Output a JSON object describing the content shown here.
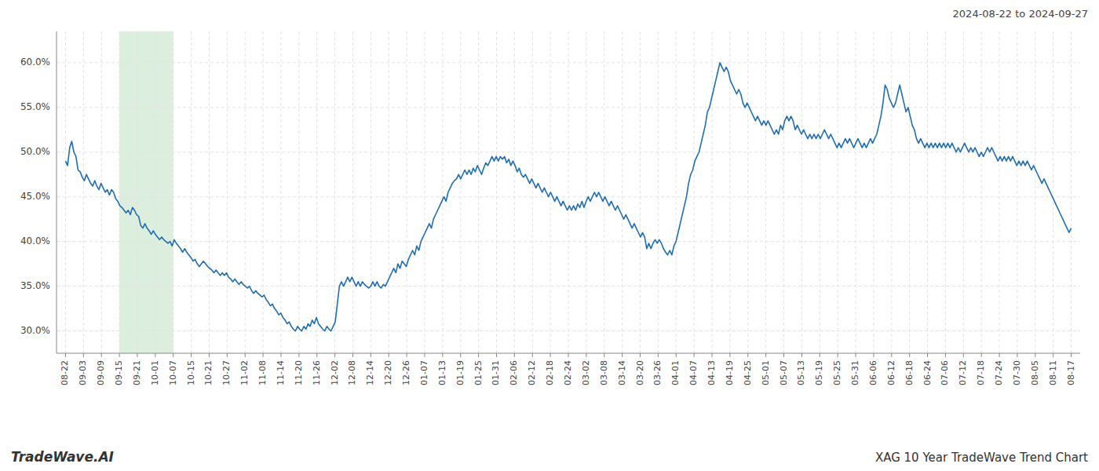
{
  "chart_data": {
    "type": "line",
    "title": "XAG 10 Year TradeWave Trend Chart",
    "subtitle": "2024-08-22 to 2024-09-27",
    "annotations": [
      "TradeWave.AI"
    ],
    "color": "#1f6eb4",
    "grid": true,
    "band": {
      "x": [
        3,
        6
      ],
      "color": "#dceedd"
    },
    "xlim": [
      -0.5,
      56.5
    ],
    "xticks": [
      {
        "value": 0,
        "label": "08-22"
      },
      {
        "value": 1,
        "label": "09-03"
      },
      {
        "value": 2,
        "label": "09-09"
      },
      {
        "value": 3,
        "label": "09-15"
      },
      {
        "value": 4,
        "label": "09-21"
      },
      {
        "value": 5,
        "label": "10-01"
      },
      {
        "value": 6,
        "label": "10-07"
      },
      {
        "value": 7,
        "label": "10-15"
      },
      {
        "value": 8,
        "label": "10-21"
      },
      {
        "value": 9,
        "label": "10-27"
      },
      {
        "value": 10,
        "label": "11-02"
      },
      {
        "value": 11,
        "label": "11-08"
      },
      {
        "value": 12,
        "label": "11-14"
      },
      {
        "value": 13,
        "label": "11-20"
      },
      {
        "value": 14,
        "label": "11-26"
      },
      {
        "value": 15,
        "label": "12-02"
      },
      {
        "value": 16,
        "label": "12-08"
      },
      {
        "value": 17,
        "label": "12-14"
      },
      {
        "value": 18,
        "label": "12-20"
      },
      {
        "value": 19,
        "label": "12-26"
      },
      {
        "value": 20,
        "label": "01-07"
      },
      {
        "value": 21,
        "label": "01-13"
      },
      {
        "value": 22,
        "label": "01-19"
      },
      {
        "value": 23,
        "label": "01-25"
      },
      {
        "value": 24,
        "label": "01-31"
      },
      {
        "value": 25,
        "label": "02-06"
      },
      {
        "value": 26,
        "label": "02-12"
      },
      {
        "value": 27,
        "label": "02-18"
      },
      {
        "value": 28,
        "label": "02-24"
      },
      {
        "value": 29,
        "label": "03-02"
      },
      {
        "value": 30,
        "label": "03-08"
      },
      {
        "value": 31,
        "label": "03-14"
      },
      {
        "value": 32,
        "label": "03-20"
      },
      {
        "value": 33,
        "label": "03-26"
      },
      {
        "value": 34,
        "label": "04-01"
      },
      {
        "value": 35,
        "label": "04-07"
      },
      {
        "value": 36,
        "label": "04-13"
      },
      {
        "value": 37,
        "label": "04-19"
      },
      {
        "value": 38,
        "label": "04-25"
      },
      {
        "value": 39,
        "label": "05-01"
      },
      {
        "value": 40,
        "label": "05-07"
      },
      {
        "value": 41,
        "label": "05-13"
      },
      {
        "value": 42,
        "label": "05-19"
      },
      {
        "value": 43,
        "label": "05-25"
      },
      {
        "value": 44,
        "label": "05-31"
      },
      {
        "value": 45,
        "label": "06-06"
      },
      {
        "value": 46,
        "label": "06-12"
      },
      {
        "value": 47,
        "label": "06-18"
      },
      {
        "value": 48,
        "label": "06-24"
      },
      {
        "value": 49,
        "label": "07-06"
      },
      {
        "value": 50,
        "label": "07-12"
      },
      {
        "value": 51,
        "label": "07-18"
      },
      {
        "value": 52,
        "label": "07-24"
      },
      {
        "value": 53,
        "label": "07-30"
      },
      {
        "value": 54,
        "label": "08-05"
      },
      {
        "value": 55,
        "label": "08-11"
      },
      {
        "value": 56,
        "label": "08-17"
      }
    ],
    "ylim": [
      27.5,
      63.5
    ],
    "yticks": [
      {
        "value": 30.0,
        "label": "30.0%"
      },
      {
        "value": 35.0,
        "label": "35.0%"
      },
      {
        "value": 40.0,
        "label": "40.0%"
      },
      {
        "value": 45.0,
        "label": "45.0%"
      },
      {
        "value": 50.0,
        "label": "50.0%"
      },
      {
        "value": 55.0,
        "label": "55.0%"
      },
      {
        "value": 60.0,
        "label": "60.0%"
      }
    ],
    "values": [
      49.0,
      48.5,
      50.5,
      51.2,
      50.0,
      49.5,
      48.0,
      47.8,
      47.2,
      46.8,
      47.5,
      47.0,
      46.5,
      46.2,
      46.8,
      46.2,
      45.8,
      46.5,
      46.0,
      45.5,
      45.8,
      45.2,
      45.8,
      45.5,
      44.8,
      44.5,
      44.0,
      43.8,
      43.5,
      43.2,
      43.5,
      43.0,
      43.8,
      43.5,
      43.0,
      42.8,
      41.8,
      41.5,
      42.0,
      41.5,
      41.2,
      40.8,
      41.2,
      40.8,
      40.5,
      40.2,
      40.5,
      40.2,
      40.0,
      39.8,
      40.0,
      39.5,
      40.2,
      39.8,
      39.5,
      39.2,
      38.8,
      39.2,
      38.8,
      38.5,
      38.2,
      37.8,
      38.0,
      37.5,
      37.2,
      37.5,
      37.8,
      37.5,
      37.2,
      37.0,
      36.8,
      36.5,
      36.8,
      36.5,
      36.2,
      36.5,
      36.2,
      36.5,
      36.0,
      35.8,
      35.5,
      35.8,
      35.5,
      35.2,
      35.5,
      35.2,
      35.0,
      34.8,
      35.0,
      34.5,
      34.2,
      34.5,
      34.2,
      34.0,
      33.8,
      34.0,
      33.5,
      33.2,
      32.8,
      33.0,
      32.5,
      32.2,
      31.8,
      32.0,
      31.5,
      31.2,
      30.8,
      31.0,
      30.5,
      30.2,
      30.0,
      30.5,
      30.2,
      30.0,
      30.5,
      30.2,
      30.8,
      30.5,
      31.2,
      30.8,
      31.5,
      30.8,
      30.5,
      30.2,
      30.0,
      30.5,
      30.2,
      30.0,
      30.5,
      31.0,
      33.0,
      35.0,
      35.5,
      35.0,
      35.5,
      36.0,
      35.5,
      36.0,
      35.5,
      35.0,
      35.5,
      35.0,
      35.5,
      35.2,
      35.0,
      34.8,
      35.0,
      35.5,
      35.0,
      35.5,
      35.0,
      34.8,
      35.2,
      35.0,
      35.5,
      36.0,
      36.5,
      37.0,
      36.5,
      37.5,
      37.0,
      37.8,
      37.5,
      37.2,
      38.0,
      38.5,
      39.0,
      38.5,
      39.5,
      39.0,
      40.0,
      40.5,
      41.0,
      41.5,
      42.0,
      41.5,
      42.5,
      43.0,
      43.5,
      44.0,
      44.5,
      45.0,
      44.5,
      45.5,
      46.0,
      46.5,
      46.8,
      47.0,
      47.5,
      47.0,
      47.5,
      48.0,
      47.5,
      48.0,
      47.5,
      48.2,
      47.8,
      48.5,
      48.0,
      47.5,
      48.2,
      48.8,
      48.5,
      49.0,
      49.5,
      49.0,
      49.5,
      49.0,
      49.5,
      49.2,
      49.5,
      48.8,
      49.2,
      48.5,
      49.0,
      48.5,
      47.8,
      48.2,
      47.5,
      47.2,
      47.5,
      47.0,
      46.5,
      47.0,
      46.5,
      46.0,
      46.5,
      46.0,
      45.5,
      46.0,
      45.5,
      45.0,
      45.5,
      45.0,
      44.5,
      45.0,
      44.5,
      44.0,
      44.5,
      44.0,
      43.5,
      44.0,
      43.5,
      44.0,
      43.5,
      44.2,
      43.8,
      44.5,
      43.8,
      44.5,
      45.0,
      44.5,
      45.0,
      45.5,
      45.0,
      45.5,
      45.0,
      44.5,
      45.0,
      44.5,
      44.0,
      44.5,
      44.0,
      43.5,
      44.0,
      43.5,
      43.0,
      42.5,
      43.0,
      42.5,
      42.0,
      41.5,
      42.0,
      41.5,
      41.0,
      40.5,
      41.0,
      40.5,
      39.2,
      39.8,
      39.2,
      39.8,
      40.2,
      39.8,
      40.2,
      39.8,
      39.2,
      38.8,
      38.5,
      39.0,
      38.5,
      39.5,
      40.0,
      41.0,
      42.0,
      43.0,
      44.0,
      45.0,
      46.5,
      47.5,
      48.0,
      49.0,
      49.5,
      50.0,
      51.0,
      52.0,
      53.0,
      54.5,
      55.0,
      56.0,
      57.0,
      58.0,
      59.0,
      60.0,
      59.5,
      59.0,
      59.5,
      59.0,
      58.0,
      57.5,
      57.0,
      56.5,
      57.0,
      56.5,
      55.5,
      55.0,
      55.5,
      55.0,
      54.5,
      54.0,
      53.5,
      54.0,
      53.5,
      53.0,
      53.5,
      53.0,
      53.5,
      53.0,
      52.5,
      52.0,
      52.5,
      52.0,
      53.0,
      52.5,
      53.5,
      54.0,
      53.5,
      54.0,
      53.5,
      52.5,
      53.0,
      52.5,
      52.0,
      52.5,
      52.0,
      51.5,
      52.0,
      51.5,
      52.0,
      51.5,
      52.0,
      51.5,
      52.0,
      52.5,
      52.0,
      51.5,
      52.0,
      51.5,
      51.0,
      50.5,
      51.0,
      50.5,
      51.0,
      51.5,
      51.0,
      51.5,
      51.0,
      50.5,
      51.0,
      51.5,
      51.0,
      50.5,
      51.0,
      50.5,
      51.0,
      51.5,
      51.0,
      51.5,
      52.0,
      53.0,
      54.0,
      55.5,
      57.5,
      57.0,
      56.0,
      55.5,
      55.0,
      55.5,
      56.5,
      57.5,
      56.5,
      55.5,
      54.5,
      55.0,
      54.0,
      53.0,
      52.5,
      51.5,
      51.0,
      51.5,
      51.0,
      50.5,
      51.0,
      50.5,
      51.0,
      50.5,
      51.0,
      50.5,
      51.0,
      50.5,
      51.0,
      50.5,
      51.0,
      50.5,
      51.0,
      50.5,
      50.0,
      50.5,
      50.0,
      50.5,
      51.0,
      50.5,
      50.0,
      50.5,
      50.0,
      50.5,
      50.0,
      49.5,
      50.0,
      49.5,
      50.0,
      50.5,
      50.0,
      50.5,
      50.0,
      49.5,
      49.0,
      49.5,
      49.0,
      49.5,
      49.0,
      49.5,
      49.0,
      49.5,
      49.0,
      48.5,
      49.0,
      48.5,
      49.0,
      48.5,
      49.0,
      48.5,
      48.0,
      48.5,
      48.0,
      47.5,
      47.0,
      46.5,
      47.0,
      46.5,
      46.0,
      45.5,
      45.0,
      44.5,
      44.0,
      43.5,
      43.0,
      42.5,
      42.0,
      41.5,
      41.0,
      41.5
    ]
  }
}
